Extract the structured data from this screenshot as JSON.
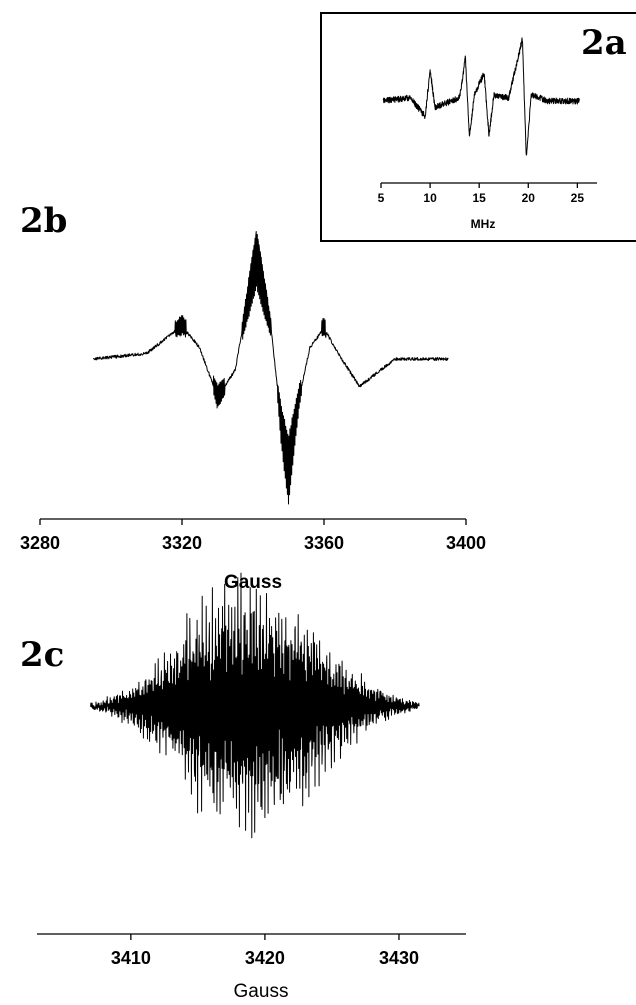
{
  "chart_data": [
    {
      "panel": "2a",
      "type": "line",
      "xlabel": "MHz",
      "ylabel": "",
      "xlim": [
        5,
        27
      ],
      "xticks": [
        5,
        10,
        15,
        20,
        25
      ],
      "tick_labels": [
        "5",
        "10",
        "15",
        "20",
        "25"
      ],
      "grid": false,
      "series": [
        {
          "x": [
            5,
            8,
            9.5,
            10,
            10.5,
            13,
            13.6,
            14.0,
            14.5,
            15.5,
            16.0,
            16.5,
            18,
            19.4,
            19.8,
            20.3,
            22,
            25
          ],
          "y": [
            0,
            0.05,
            -0.25,
            0.5,
            -0.1,
            0.05,
            0.7,
            -0.6,
            0.1,
            0.45,
            -0.55,
            0.1,
            0.05,
            1.0,
            -0.9,
            0.1,
            0,
            0
          ]
        }
      ]
    },
    {
      "panel": "2b",
      "type": "line",
      "xlabel": "Gauss",
      "ylabel": "",
      "xlim": [
        3280,
        3400
      ],
      "xticks": [
        3280,
        3320,
        3360,
        3400
      ],
      "tick_labels": [
        "3280",
        "3320",
        "3360",
        "3400"
      ],
      "grid": false,
      "series": [
        {
          "x": [
            3295,
            3310,
            3320,
            3325,
            3330,
            3335,
            3341,
            3345,
            3348,
            3350,
            3353,
            3356,
            3360,
            3364,
            3370,
            3380,
            3395
          ],
          "y": [
            0,
            0.05,
            0.3,
            0.1,
            -0.35,
            -0.1,
            1.0,
            0.3,
            -0.6,
            -1.0,
            -0.35,
            0.1,
            0.28,
            0.05,
            -0.25,
            0,
            0
          ]
        }
      ]
    },
    {
      "panel": "2c",
      "type": "line",
      "xlabel": "Gauss",
      "ylabel": "",
      "xlim": [
        3403,
        3435
      ],
      "xticks": [
        3410,
        3420,
        3430
      ],
      "tick_labels": [
        "3410",
        "3420",
        "3430"
      ],
      "grid": false,
      "series": [
        {
          "x": [
            3407,
            3410,
            3413,
            3415,
            3417,
            3419,
            3421,
            3423,
            3425,
            3428,
            3431.5
          ],
          "y": [
            0,
            0.15,
            0.45,
            0.8,
            0.95,
            1.0,
            0.9,
            0.7,
            0.45,
            0.15,
            0
          ]
        }
      ]
    }
  ]
}
